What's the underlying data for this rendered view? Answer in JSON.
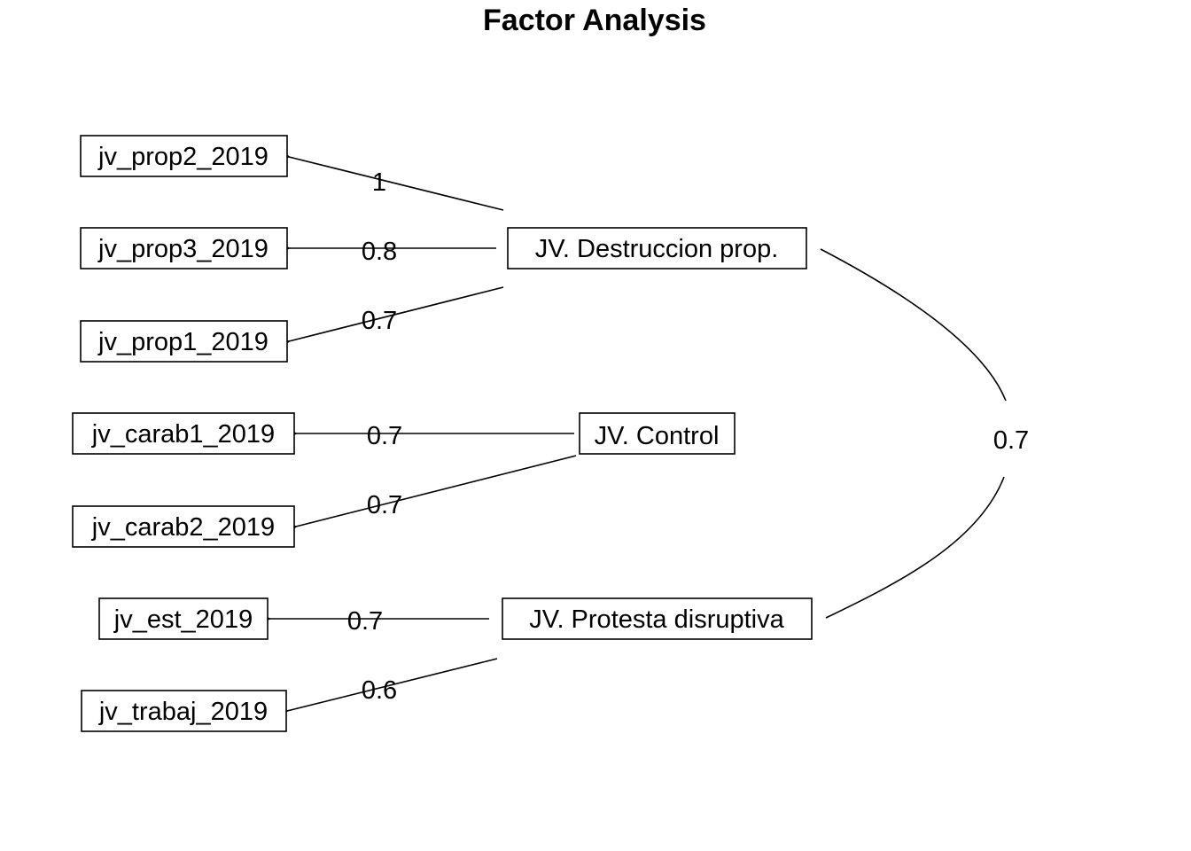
{
  "title": "Factor Analysis",
  "indicators": {
    "prop2": "jv_prop2_2019",
    "prop3": "jv_prop3_2019",
    "prop1": "jv_prop1_2019",
    "carab1": "jv_carab1_2019",
    "carab2": "jv_carab2_2019",
    "est": "jv_est_2019",
    "trabaj": "jv_trabaj_2019"
  },
  "factors": {
    "destruccion": "JV. Destruccion prop.",
    "control": "JV. Control",
    "protesta": "JV. Protesta disruptiva"
  },
  "loadings": {
    "destruccion_prop2": "1",
    "destruccion_prop3": "0.8",
    "destruccion_prop1": "0.7",
    "control_carab1": "0.7",
    "control_carab2": "0.7",
    "protesta_est": "0.7",
    "protesta_trabaj": "0.6"
  },
  "correlations": {
    "destruccion_protesta": "0.7"
  }
}
